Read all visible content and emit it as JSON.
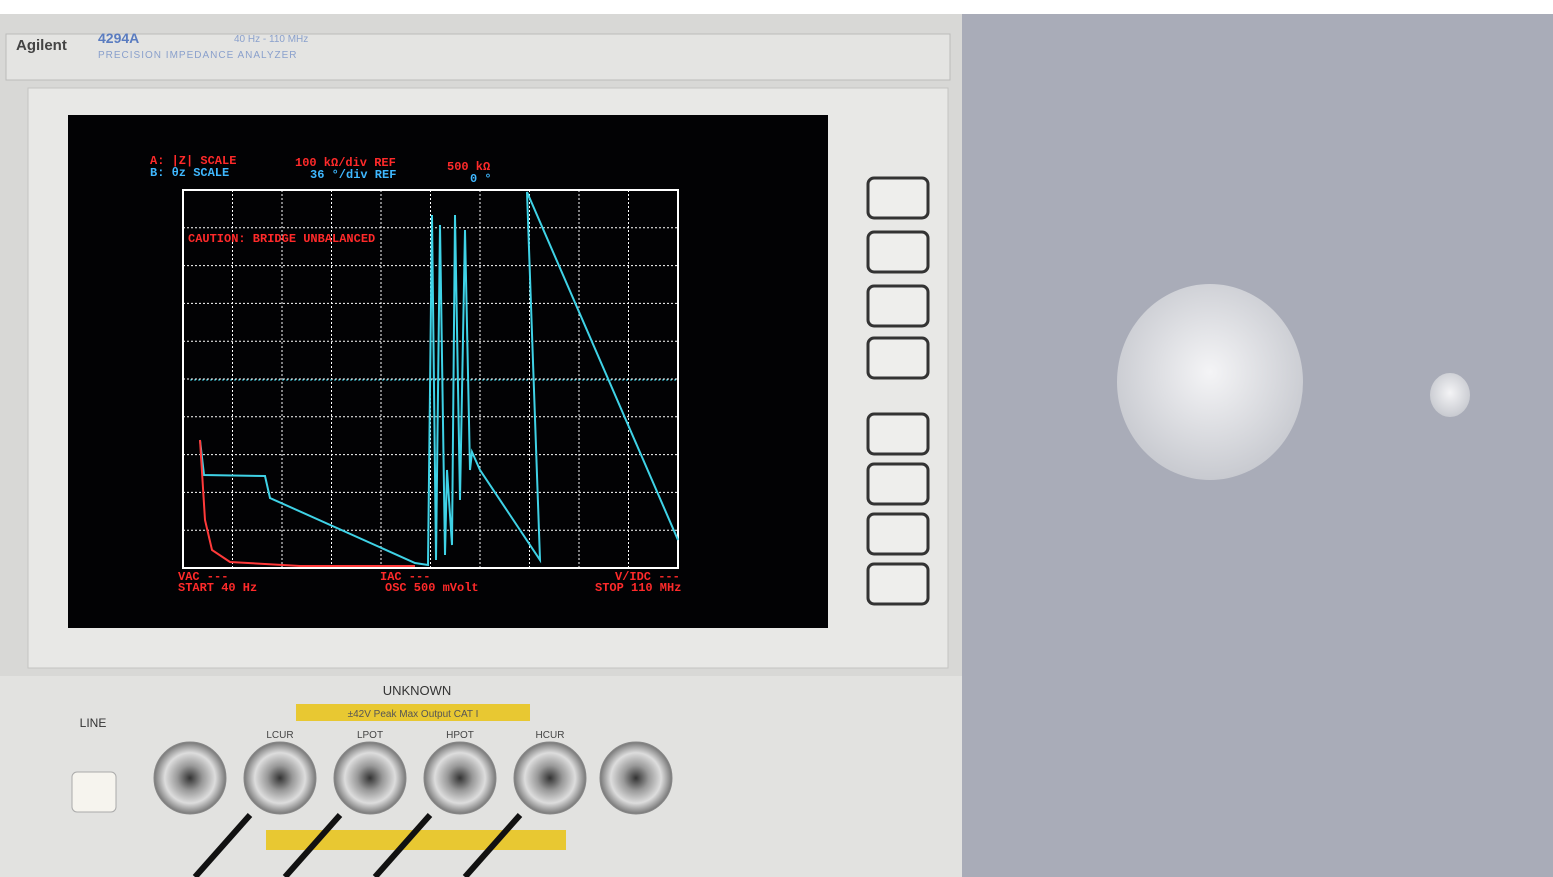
{
  "header": {
    "brand": "Agilent",
    "model": "4294A",
    "range": "40 Hz - 110 MHz",
    "name": "PRECISION IMPEDANCE ANALYZER"
  },
  "screen": {
    "trace_a": "A: |Z|  SCALE",
    "scale_a": "100 kΩ/div REF",
    "ref_a": "500 kΩ",
    "trace_b": "B: θz  SCALE",
    "scale_b": "36 °/div REF",
    "ref_b": "0 °",
    "caution": "CAUTION: BRIDGE UNBALANCED",
    "vac": "VAC ---",
    "start": "START 40 Hz",
    "iac": "IAC ---",
    "osc": "OSC 500 mVolt",
    "vidc": "V/IDC ---",
    "stop": "STOP 110 MHz"
  },
  "panel": {
    "unknown": "UNKNOWN",
    "warning": "±42V Peak Max Output  CAT I",
    "line": "LINE",
    "ports": [
      "LCUR",
      "LPOT",
      "HPOT",
      "HCUR"
    ]
  }
}
